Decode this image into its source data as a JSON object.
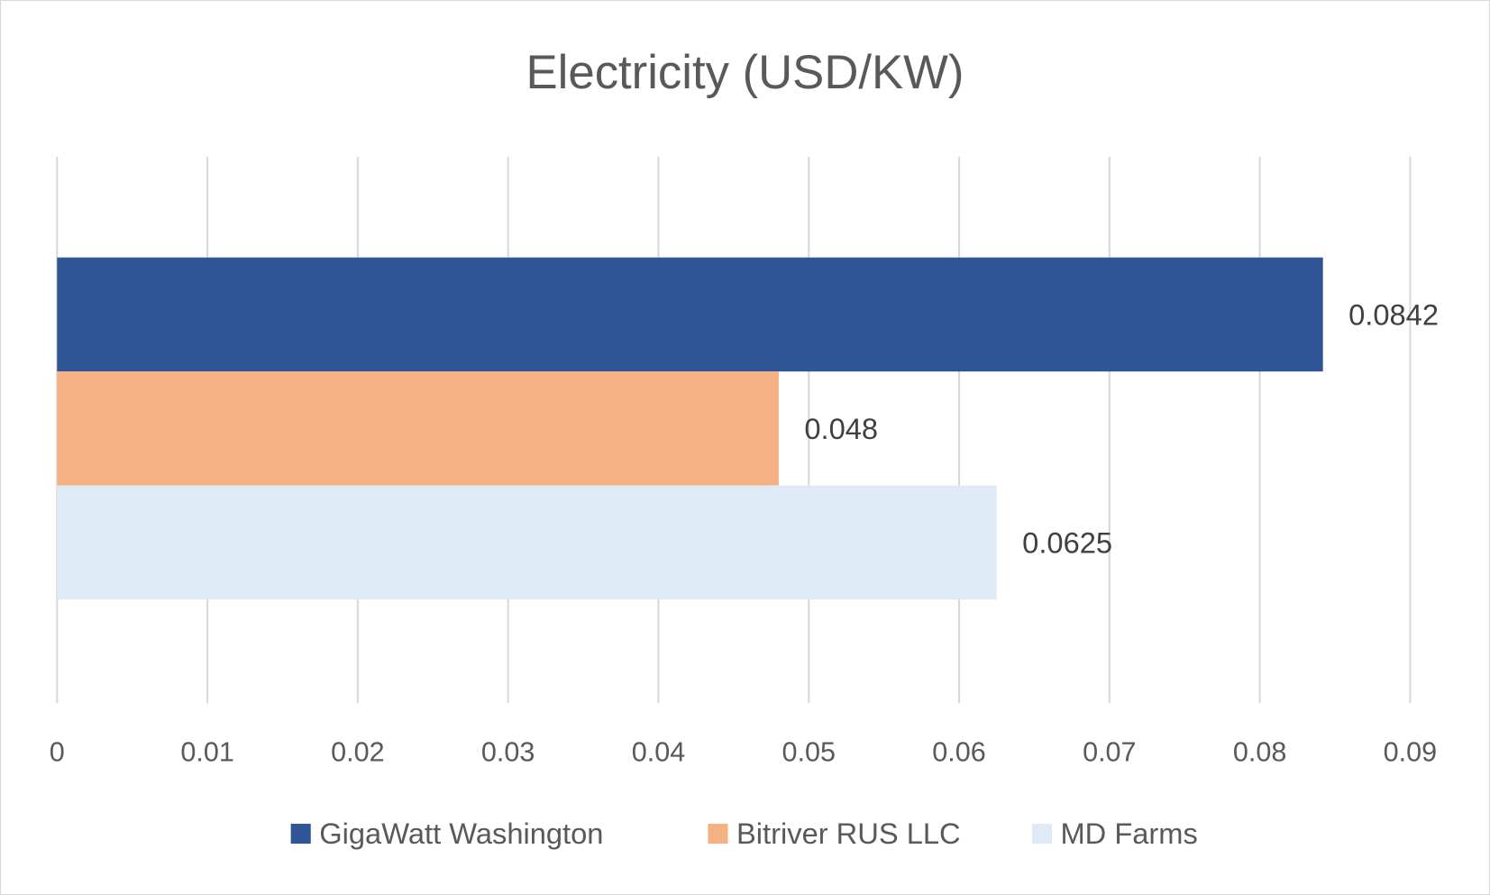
{
  "chart_data": {
    "type": "bar",
    "orientation": "horizontal",
    "title": "Electricity (USD/KW)",
    "xlabel": "",
    "ylabel": "",
    "xlim": [
      0,
      0.09
    ],
    "x_ticks": [
      "0",
      "0.01",
      "0.02",
      "0.03",
      "0.04",
      "0.05",
      "0.06",
      "0.07",
      "0.08",
      "0.09"
    ],
    "grid": true,
    "legend_position": "bottom",
    "categories": [
      ""
    ],
    "series": [
      {
        "name": "GigaWatt Washington",
        "values": [
          0.0842
        ],
        "label": "0.0842",
        "color": "#2F5597"
      },
      {
        "name": "Bitriver RUS LLC",
        "values": [
          0.048
        ],
        "label": "0.048",
        "color": "#F4B183"
      },
      {
        "name": "MD Farms",
        "values": [
          0.0625
        ],
        "label": "0.0625",
        "color": "#DEEBF7"
      }
    ]
  }
}
